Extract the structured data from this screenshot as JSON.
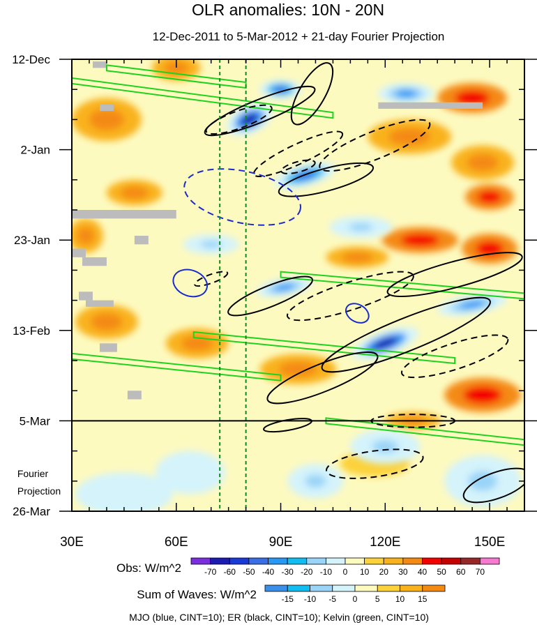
{
  "chart_data": {
    "type": "heatmap",
    "title": "OLR anomalies: 10N - 20N",
    "subtitle": "12-Dec-2011 to 5-Mar-2012 + 21-day Fourier Projection",
    "x_axis": {
      "range": [
        30,
        160
      ],
      "ticks": [
        30,
        60,
        90,
        120,
        150
      ],
      "tick_labels": [
        "30E",
        "60E",
        "90E",
        "120E",
        "150E"
      ]
    },
    "y_axis": {
      "range_days": [
        0,
        105
      ],
      "ticks_days": [
        0,
        21,
        42,
        63,
        84,
        105
      ],
      "tick_labels": [
        "12-Dec",
        "2-Jan",
        "23-Jan",
        "13-Feb",
        "5-Mar",
        "26-Mar"
      ],
      "direction": "time increases downward"
    },
    "projection_start_day": 84,
    "projection_label": [
      "Fourier",
      "Projection"
    ],
    "reference_longitudes": [
      72.5,
      80
    ],
    "obs_colorbar": {
      "label": "Obs: W/m^2",
      "levels": [
        "-70",
        "-60",
        "-50",
        "-40",
        "-30",
        "-20",
        "-10",
        "0",
        "10",
        "20",
        "30",
        "40",
        "50",
        "60",
        "70"
      ],
      "colors": [
        "#7b2ee0",
        "#1c1cb4",
        "#1a3ad8",
        "#3a6ee6",
        "#2898f5",
        "#10bcf0",
        "#9ad4f8",
        "#d4f3fb",
        "#fdfac0",
        "#fcd23a",
        "#f9b21c",
        "#f48a12",
        "#f40000",
        "#c80000",
        "#982828",
        "#f57ad0"
      ]
    },
    "waves_colorbar": {
      "label": "Sum of Waves: W/m^2",
      "levels": [
        "-15",
        "-10",
        "-5",
        "0",
        "5",
        "10",
        "15"
      ],
      "colors": [
        "#3a8fe8",
        "#10bcf0",
        "#9ad4f8",
        "#d4f3fb",
        "#fdfac0",
        "#fcd23a",
        "#f9b21c",
        "#f48a12"
      ]
    },
    "footnote": "MJO (blue, CINT=10); ER (black, CINT=10); Kelvin (green, CINT=10)",
    "features": {
      "obs_negative": [
        {
          "lon": 81,
          "day": 14,
          "value": -70,
          "rx": 7,
          "ry": 3.2,
          "angle": -25
        },
        {
          "lon": 90,
          "day": 7,
          "value": -50,
          "rx": 6,
          "ry": 2.2,
          "angle": 0
        },
        {
          "lon": 97,
          "day": 27,
          "value": -50,
          "rx": 9,
          "ry": 2.5,
          "angle": -15
        },
        {
          "lon": 91,
          "day": 53,
          "value": -40,
          "rx": 8,
          "ry": 2,
          "angle": -10
        },
        {
          "lon": 120,
          "day": 66,
          "value": -70,
          "rx": 10,
          "ry": 2.8,
          "angle": -20
        },
        {
          "lon": 126,
          "day": 8,
          "value": -40,
          "rx": 8,
          "ry": 2.4,
          "angle": 0
        },
        {
          "lon": 145,
          "day": 57,
          "value": -40,
          "rx": 10,
          "ry": 2.2,
          "angle": -10
        },
        {
          "lon": 113,
          "day": 39,
          "value": -20,
          "rx": 9,
          "ry": 2.5,
          "angle": 0
        },
        {
          "lon": 70,
          "day": 43,
          "value": -20,
          "rx": 8,
          "ry": 2.3,
          "angle": 0
        },
        {
          "lon": 120,
          "day": 90,
          "value": -20,
          "rx": 10,
          "ry": 4,
          "angle": 0
        },
        {
          "lon": 148,
          "day": 98,
          "value": -20,
          "rx": 11,
          "ry": 6,
          "angle": 0
        },
        {
          "lon": 45,
          "day": 101,
          "value": -10,
          "rx": 14,
          "ry": 5,
          "angle": 0
        },
        {
          "lon": 100,
          "day": 98,
          "value": -20,
          "rx": 8,
          "ry": 4,
          "angle": 0
        },
        {
          "lon": 64,
          "day": 96,
          "value": -10,
          "rx": 10,
          "ry": 5,
          "angle": 0
        }
      ],
      "obs_positive": [
        {
          "lon": 40,
          "day": 14,
          "value": 20,
          "rx": 10,
          "ry": 5,
          "angle": 0
        },
        {
          "lon": 60,
          "day": 2,
          "value": 20,
          "rx": 7,
          "ry": 3,
          "angle": 0
        },
        {
          "lon": 127,
          "day": 18,
          "value": 20,
          "rx": 12,
          "ry": 4,
          "angle": 0
        },
        {
          "lon": 145,
          "day": 9,
          "value": 30,
          "rx": 10,
          "ry": 3.5,
          "angle": 0
        },
        {
          "lon": 148,
          "day": 24,
          "value": 20,
          "rx": 9,
          "ry": 4,
          "angle": 0
        },
        {
          "lon": 130,
          "day": 42,
          "value": 30,
          "rx": 11,
          "ry": 3,
          "angle": 0
        },
        {
          "lon": 112,
          "day": 46,
          "value": 20,
          "rx": 9,
          "ry": 2.5,
          "angle": 0
        },
        {
          "lon": 150,
          "day": 44,
          "value": 30,
          "rx": 8,
          "ry": 3.5,
          "angle": 0
        },
        {
          "lon": 40,
          "day": 61,
          "value": 20,
          "rx": 9,
          "ry": 4,
          "angle": 0
        },
        {
          "lon": 95,
          "day": 72,
          "value": 20,
          "rx": 11,
          "ry": 3.5,
          "angle": 0
        },
        {
          "lon": 148,
          "day": 78,
          "value": 30,
          "rx": 11,
          "ry": 4,
          "angle": 0
        },
        {
          "lon": 128,
          "day": 84,
          "value": 20,
          "rx": 8,
          "ry": 2,
          "angle": 0
        },
        {
          "lon": 117,
          "day": 94,
          "value": 10,
          "rx": 10,
          "ry": 3,
          "angle": 0
        },
        {
          "lon": 48,
          "day": 31,
          "value": 20,
          "rx": 8,
          "ry": 3,
          "angle": 0
        },
        {
          "lon": 66,
          "day": 66,
          "value": 20,
          "rx": 9,
          "ry": 3.5,
          "angle": 0
        },
        {
          "lon": 34,
          "day": 41,
          "value": 20,
          "rx": 5,
          "ry": 4,
          "angle": 0
        },
        {
          "lon": 150,
          "day": 32,
          "value": 30,
          "rx": 7,
          "ry": 3,
          "angle": 0
        }
      ],
      "er_contours": [
        {
          "lon": 84,
          "day": 12,
          "rx": 17,
          "ry": 2.6,
          "angle": -22,
          "dashed": false
        },
        {
          "lon": 78,
          "day": 14,
          "rx": 10,
          "ry": 2,
          "angle": -20,
          "dashed": true
        },
        {
          "lon": 103,
          "day": 28,
          "rx": 14,
          "ry": 2.6,
          "angle": -15,
          "dashed": false
        },
        {
          "lon": 95,
          "day": 22,
          "rx": 14,
          "ry": 2.3,
          "angle": -25,
          "dashed": true
        },
        {
          "lon": 117,
          "day": 20,
          "rx": 17,
          "ry": 3.2,
          "angle": -22,
          "dashed": true
        },
        {
          "lon": 99,
          "day": 8,
          "rx": 10,
          "ry": 3,
          "angle": -60,
          "dashed": false
        },
        {
          "lon": 87,
          "day": 55,
          "rx": 13,
          "ry": 2.4,
          "angle": -22,
          "dashed": false
        },
        {
          "lon": 110,
          "day": 55,
          "rx": 19,
          "ry": 3.2,
          "angle": -18,
          "dashed": true
        },
        {
          "lon": 126,
          "day": 64,
          "rx": 26,
          "ry": 3.8,
          "angle": -22,
          "dashed": false
        },
        {
          "lon": 102,
          "day": 74,
          "rx": 17,
          "ry": 3.2,
          "angle": -22,
          "dashed": false
        },
        {
          "lon": 140,
          "day": 69,
          "rx": 16,
          "ry": 3,
          "angle": -18,
          "dashed": true
        },
        {
          "lon": 70,
          "day": 51,
          "rx": 5,
          "ry": 1,
          "angle": -20,
          "dashed": true
        },
        {
          "lon": 117,
          "day": 94,
          "rx": 14,
          "ry": 3,
          "angle": -8,
          "dashed": true
        },
        {
          "lon": 128,
          "day": 84,
          "rx": 12,
          "ry": 1.5,
          "angle": 0,
          "dashed": true
        },
        {
          "lon": 152,
          "day": 99,
          "rx": 10,
          "ry": 3,
          "angle": -20,
          "dashed": false
        },
        {
          "lon": 92,
          "day": 85,
          "rx": 7,
          "ry": 1.2,
          "angle": -10,
          "dashed": false
        },
        {
          "lon": 95,
          "day": 25,
          "rx": 5,
          "ry": 1.2,
          "angle": -15,
          "dashed": true
        },
        {
          "lon": 140,
          "day": 50,
          "rx": 20,
          "ry": 3,
          "angle": -15,
          "dashed": false
        }
      ],
      "mjo_contours": [
        {
          "lon": 79,
          "day": 32,
          "rx": 17,
          "ry": 6,
          "angle": 12,
          "dashed": true
        },
        {
          "lon": 64,
          "day": 52,
          "rx": 5,
          "ry": 3,
          "angle": 20,
          "dashed": false
        },
        {
          "lon": 112,
          "day": 59,
          "rx": 3.5,
          "ry": 2,
          "angle": 30,
          "dashed": false
        }
      ],
      "kelvin_lines": [
        {
          "lon1": 30,
          "day1": 5,
          "lon2": 105,
          "day2": 13
        },
        {
          "lon1": 30,
          "day1": 69,
          "lon2": 90,
          "day2": 74
        },
        {
          "lon1": 65,
          "day1": 64,
          "lon2": 140,
          "day2": 70
        },
        {
          "lon1": 90,
          "day1": 50,
          "lon2": 160,
          "day2": 55
        },
        {
          "lon1": 103,
          "day1": 84,
          "lon2": 160,
          "day2": 89
        },
        {
          "lon1": 40,
          "day1": 2,
          "lon2": 80,
          "day2": 6
        }
      ],
      "missing_data": [
        {
          "lon1": 36,
          "lon2": 40,
          "day1": 0.5,
          "day2": 2
        },
        {
          "lon1": 38,
          "lon2": 42,
          "day1": 10.5,
          "day2": 12
        },
        {
          "lon1": 30,
          "lon2": 60,
          "day1": 35,
          "day2": 37
        },
        {
          "lon1": 48,
          "lon2": 52,
          "day1": 41,
          "day2": 43
        },
        {
          "lon1": 30,
          "lon2": 34,
          "day1": 44,
          "day2": 46
        },
        {
          "lon1": 33,
          "lon2": 40,
          "day1": 46,
          "day2": 48
        },
        {
          "lon1": 32,
          "lon2": 36,
          "day1": 54,
          "day2": 56
        },
        {
          "lon1": 34,
          "lon2": 42,
          "day1": 56,
          "day2": 57.5
        },
        {
          "lon1": 38,
          "lon2": 43,
          "day1": 66,
          "day2": 68
        },
        {
          "lon1": 46,
          "lon2": 50,
          "day1": 77,
          "day2": 79
        },
        {
          "lon1": 118,
          "lon2": 148,
          "day1": 10,
          "day2": 11.5
        }
      ]
    }
  }
}
